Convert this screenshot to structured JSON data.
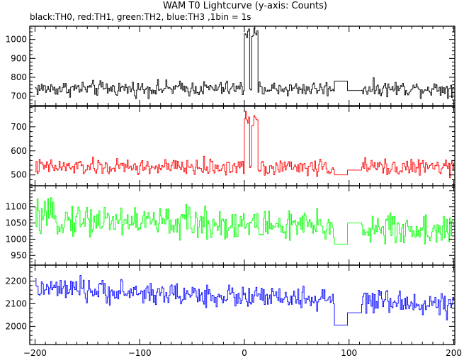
{
  "header": {
    "title": "WAM T0 Lightcurve (y-axis: Counts)",
    "subtitle": "black:TH0, red:TH1, green:TH2, blue:TH3 ,1bin = 1s"
  },
  "chart_data": {
    "type": "line",
    "title": "WAM T0 Lightcurve (y-axis: Counts)",
    "subtitle": "black:TH0, red:TH1, green:TH2, blue:TH3 ,1bin = 1s",
    "xlabel": "",
    "ylabel": "",
    "xlim": [
      -205,
      201
    ],
    "xticks": [
      -200,
      -100,
      0,
      100,
      200
    ],
    "grid": false,
    "data_gap": [
      85,
      112
    ],
    "panels": [
      {
        "name": "TH0",
        "color": "#000000",
        "ylim": [
          650,
          1070
        ],
        "yticks": [
          700,
          800,
          900,
          1000
        ],
        "baseline": 740,
        "noise": 28,
        "gap_levels": [
          780,
          730
        ],
        "peak": {
          "start": 0,
          "end": 12,
          "level": 1030,
          "dip": [
            5,
            6
          ]
        }
      },
      {
        "name": "TH1",
        "color": "#ff0000",
        "ylim": [
          455,
          785
        ],
        "yticks": [
          500,
          600,
          700
        ],
        "baseline": 532,
        "noise": 24,
        "gap_levels": [
          500,
          520
        ],
        "peak": {
          "start": 0,
          "end": 12,
          "level": 735,
          "dip": [
            5,
            6
          ]
        }
      },
      {
        "name": "TH2",
        "color": "#00ff00",
        "ylim": [
          920,
          1165
        ],
        "yticks": [
          950,
          1000,
          1050,
          1100
        ],
        "baseline": 1045,
        "noise": 35,
        "trend": -0.1,
        "gap_levels": [
          985,
          1050
        ]
      },
      {
        "name": "TH3",
        "color": "#0000ff",
        "ylim": [
          1920,
          2270
        ],
        "yticks": [
          2000,
          2100,
          2200
        ],
        "baseline": 2130,
        "noise": 35,
        "trend": -0.18,
        "gap_levels": [
          2005,
          2060
        ]
      }
    ]
  }
}
